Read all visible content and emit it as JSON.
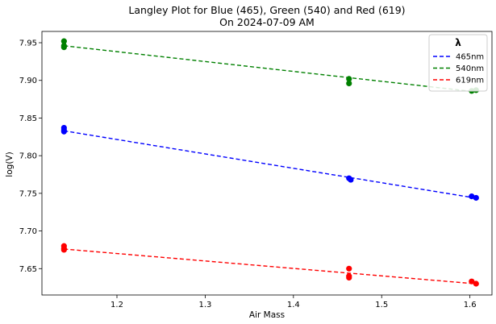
{
  "chart_data": {
    "type": "scatter",
    "title": "Langley Plot for Blue (465), Green (540) and Red (619)",
    "subtitle": "On 2024-07-09 AM",
    "xlabel": "Air Mass",
    "ylabel": "log(V)",
    "xlim": [
      1.115,
      1.625
    ],
    "ylim": [
      7.615,
      7.965
    ],
    "x_ticks": [
      1.2,
      1.3,
      1.4,
      1.5,
      1.6
    ],
    "x_tick_labels": [
      "1.2",
      "1.3",
      "1.4",
      "1.5",
      "1.6"
    ],
    "y_ticks": [
      7.65,
      7.7,
      7.75,
      7.8,
      7.85,
      7.9,
      7.95
    ],
    "y_tick_labels": [
      "7.65",
      "7.70",
      "7.75",
      "7.80",
      "7.85",
      "7.90",
      "7.95"
    ],
    "grid": false,
    "legend": {
      "title": "λ",
      "placement": "top-right"
    },
    "series": [
      {
        "name": "465nm",
        "color": "#0000ff",
        "points": [
          [
            1.14,
            7.837
          ],
          [
            1.14,
            7.834
          ],
          [
            1.14,
            7.832
          ],
          [
            1.463,
            7.77
          ],
          [
            1.465,
            7.768
          ],
          [
            1.602,
            7.746
          ],
          [
            1.607,
            7.744
          ]
        ],
        "fit": [
          [
            1.14,
            7.833
          ],
          [
            1.605,
            7.744
          ]
        ]
      },
      {
        "name": "540nm",
        "color": "#008000",
        "points": [
          [
            1.14,
            7.952
          ],
          [
            1.14,
            7.946
          ],
          [
            1.14,
            7.944
          ],
          [
            1.463,
            7.902
          ],
          [
            1.463,
            7.896
          ],
          [
            1.602,
            7.886
          ],
          [
            1.607,
            7.887
          ]
        ],
        "fit": [
          [
            1.14,
            7.946
          ],
          [
            1.605,
            7.885
          ]
        ]
      },
      {
        "name": "619nm",
        "color": "#ff0000",
        "points": [
          [
            1.14,
            7.68
          ],
          [
            1.14,
            7.677
          ],
          [
            1.14,
            7.675
          ],
          [
            1.463,
            7.65
          ],
          [
            1.463,
            7.64
          ],
          [
            1.463,
            7.638
          ],
          [
            1.602,
            7.633
          ],
          [
            1.607,
            7.63
          ]
        ],
        "fit": [
          [
            1.14,
            7.676
          ],
          [
            1.605,
            7.63
          ]
        ]
      }
    ]
  }
}
